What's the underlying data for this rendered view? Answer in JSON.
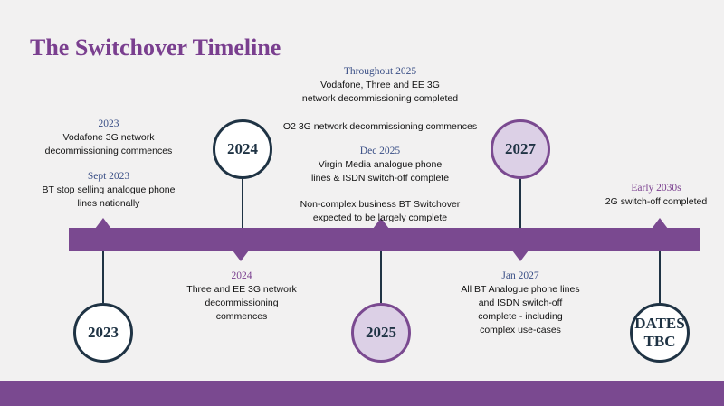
{
  "title": "The Switchover Timeline",
  "colors": {
    "accent": "#7a4990",
    "title": "#7a3f8f",
    "navy": "#1f3344",
    "date_blue": "#3a4f86",
    "light_purple": "#dcd0e6"
  },
  "milestones": [
    {
      "label": "2023"
    },
    {
      "label": "2024"
    },
    {
      "label": "2025"
    },
    {
      "label": "2027"
    },
    {
      "label_line1": "DATES",
      "label_line2": "TBC"
    }
  ],
  "events": {
    "e2023": {
      "date": "2023",
      "lines": [
        "Vodafone 3G network",
        "decommissioning commences"
      ]
    },
    "sept2023": {
      "date": "Sept 2023",
      "lines": [
        "BT stop selling analogue phone",
        "lines nationally"
      ]
    },
    "e2024": {
      "date": "2024",
      "lines": [
        "Three and EE 3G network",
        "decommissioning",
        "commences"
      ]
    },
    "through2025": {
      "date": "Throughout 2025",
      "lines": [
        "Vodafone, Three and EE 3G",
        "network decommissioning completed"
      ]
    },
    "o2": {
      "lines": [
        "O2 3G network decommissioning commences"
      ]
    },
    "dec2025": {
      "date": "Dec 2025",
      "lines": [
        "Virgin Media analogue phone",
        "lines & ISDN switch-off complete"
      ]
    },
    "noncomplex": {
      "lines": [
        "Non-complex business BT Switchover",
        "expected to be largely complete"
      ]
    },
    "jan2027": {
      "date": "Jan 2027",
      "lines": [
        "All BT Analogue phone lines",
        "and ISDN switch-off",
        "complete - including",
        "complex use-cases"
      ]
    },
    "early2030s": {
      "date": "Early 2030s",
      "lines": [
        "2G switch-off completed"
      ]
    }
  }
}
